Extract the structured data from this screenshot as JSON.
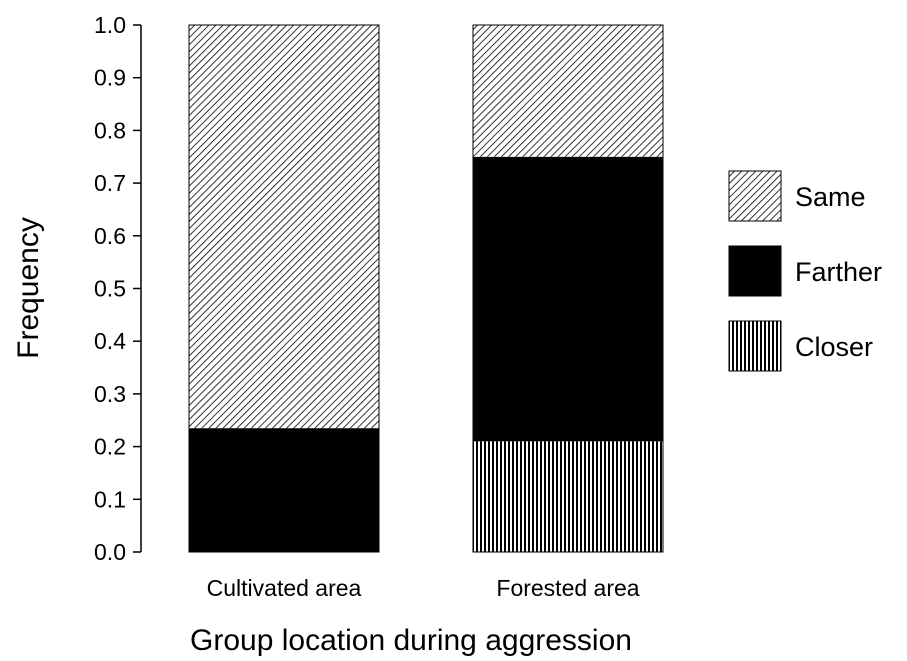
{
  "chart_data": {
    "type": "bar",
    "stacked": true,
    "categories": [
      "Cultivated area",
      "Forested area"
    ],
    "series": [
      {
        "name": "Closer",
        "values": [
          0.0,
          0.21
        ],
        "pattern": "vertical-lines"
      },
      {
        "name": "Farther",
        "values": [
          0.235,
          0.54
        ],
        "pattern": "solid-black"
      },
      {
        "name": "Same",
        "values": [
          0.765,
          0.25
        ],
        "pattern": "diagonal-hatch"
      }
    ],
    "legend_order": [
      "Same",
      "Farther",
      "Closer"
    ],
    "legend_position": "right",
    "xlabel": "Group location during aggression",
    "ylabel": "Frequency",
    "ylim": [
      0.0,
      1.0
    ],
    "yticks": [
      "0.0",
      "0.1",
      "0.2",
      "0.3",
      "0.4",
      "0.5",
      "0.6",
      "0.7",
      "0.8",
      "0.9",
      "1.0"
    ],
    "grid": false
  }
}
